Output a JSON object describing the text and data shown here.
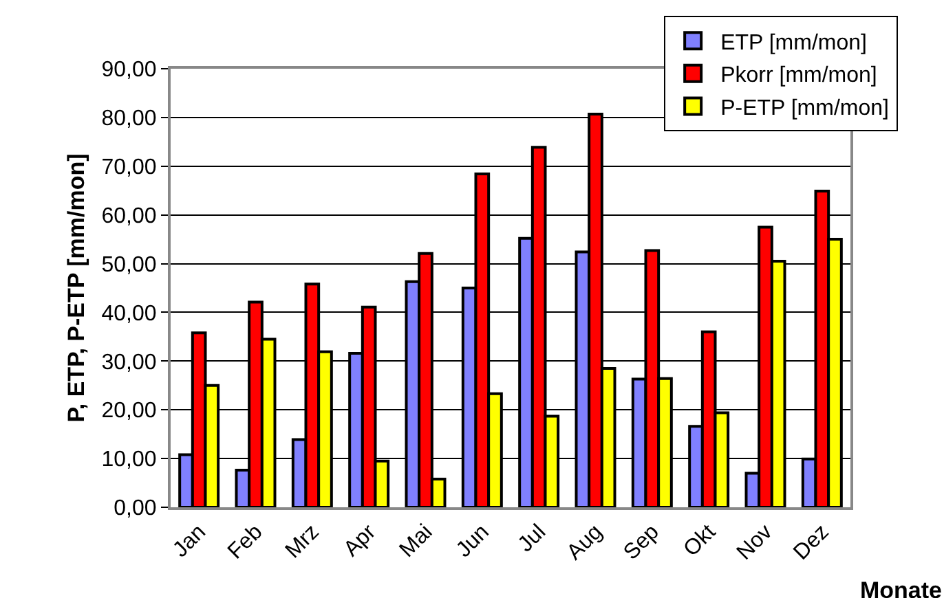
{
  "chart_data": {
    "type": "bar",
    "xlabel": "Monate",
    "ylabel": "P, ETP, P-ETP [mm/mon]",
    "categories": [
      "Jan",
      "Feb",
      "Mrz",
      "Apr",
      "Mai",
      "Jun",
      "Jul",
      "Aug",
      "Sep",
      "Okt",
      "Nov",
      "Dez"
    ],
    "series": [
      {
        "name": "ETP [mm/mon]",
        "color": "#8080ff",
        "values": [
          10.8,
          7.6,
          13.9,
          31.6,
          46.3,
          45.0,
          55.2,
          52.4,
          26.3,
          16.6,
          7.0,
          9.9
        ]
      },
      {
        "name": "Pkorr [mm/mon]",
        "color": "#ff0000",
        "values": [
          35.8,
          42.1,
          45.8,
          41.1,
          52.1,
          68.4,
          73.9,
          80.7,
          52.7,
          36.0,
          57.5,
          64.9
        ]
      },
      {
        "name": "P-ETP [mm/mon]",
        "color": "#ffff00",
        "values": [
          25.0,
          34.5,
          31.9,
          9.5,
          5.8,
          23.3,
          18.7,
          28.5,
          26.4,
          19.4,
          50.5,
          55.0
        ]
      }
    ],
    "ylim": [
      0,
      90
    ],
    "yticks": [
      {
        "value": 0,
        "label": "0,00"
      },
      {
        "value": 10,
        "label": "10,00"
      },
      {
        "value": 20,
        "label": "20,00"
      },
      {
        "value": 30,
        "label": "30,00"
      },
      {
        "value": 40,
        "label": "40,00"
      },
      {
        "value": 50,
        "label": "50,00"
      },
      {
        "value": 60,
        "label": "60,00"
      },
      {
        "value": 70,
        "label": "70,00"
      },
      {
        "value": 80,
        "label": "80,00"
      },
      {
        "value": 90,
        "label": "90,00"
      }
    ],
    "grid": "y",
    "legend": "top right"
  }
}
